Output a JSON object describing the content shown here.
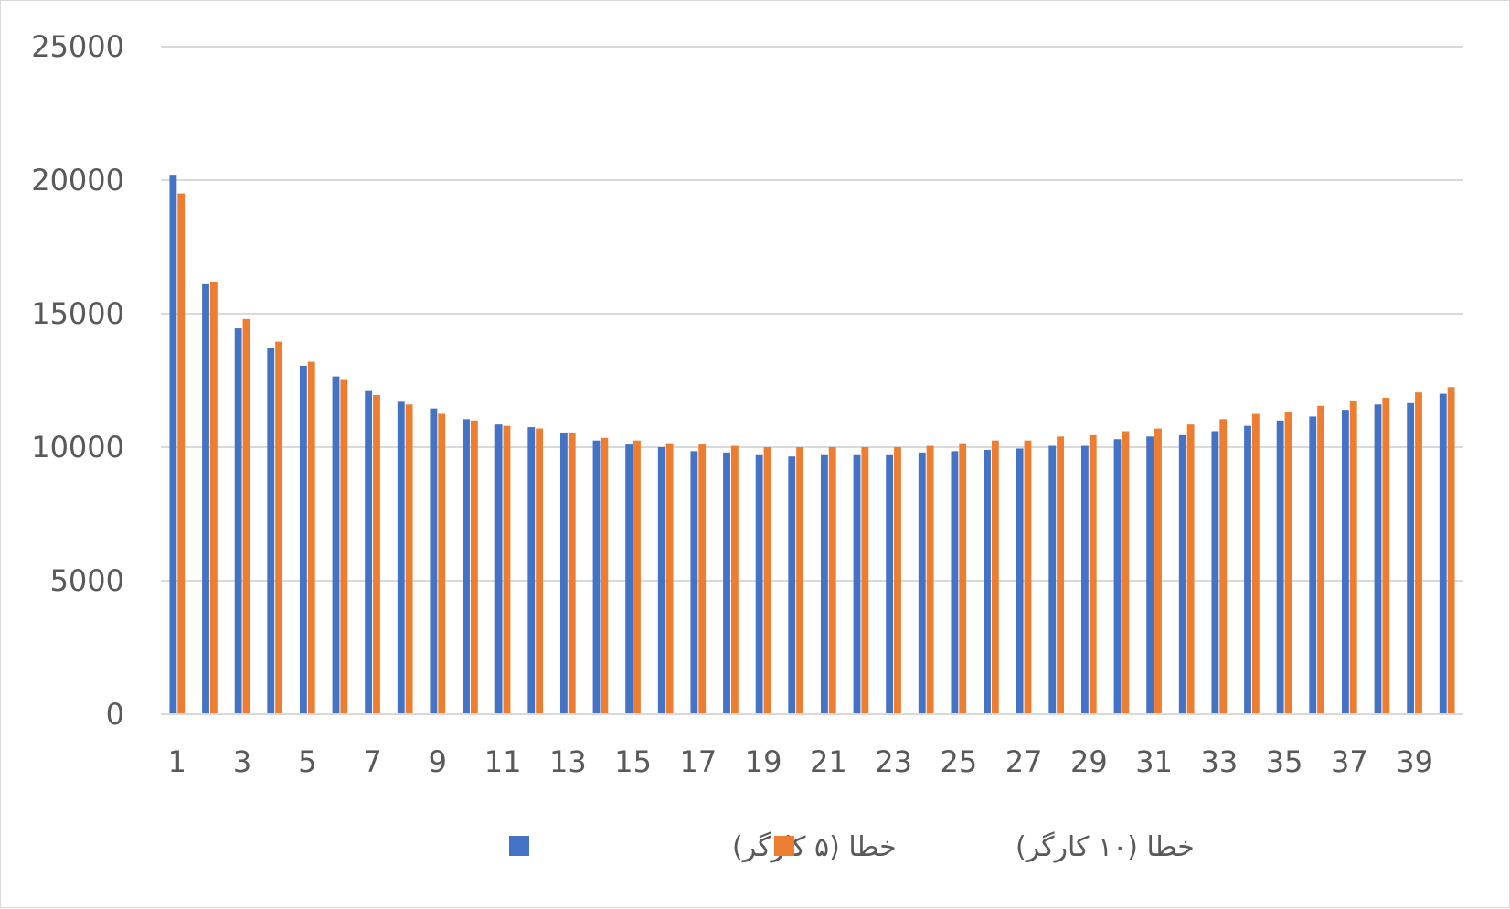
{
  "chart_data": {
    "type": "bar",
    "title": "",
    "xlabel": "",
    "ylabel": "",
    "ylim": [
      0,
      25000
    ],
    "yticks": [
      "0",
      "5000",
      "10000",
      "15000",
      "20000",
      "25000"
    ],
    "xtick_labels": [
      "1",
      "3",
      "5",
      "7",
      "9",
      "11",
      "13",
      "15",
      "17",
      "19",
      "21",
      "23",
      "25",
      "27",
      "29",
      "31",
      "33",
      "35",
      "37",
      "39"
    ],
    "grid": true,
    "legend_position": "bottom",
    "categories": [
      1,
      2,
      3,
      4,
      5,
      6,
      7,
      8,
      9,
      10,
      11,
      12,
      13,
      14,
      15,
      16,
      17,
      18,
      19,
      20,
      21,
      22,
      23,
      24,
      25,
      26,
      27,
      28,
      29,
      30,
      31,
      32,
      33,
      34,
      35,
      36,
      37,
      38,
      39,
      40
    ],
    "series": [
      {
        "name": "خطا (۵ کارگر)",
        "color": "#4472C4",
        "values": [
          20200,
          16100,
          14450,
          13700,
          13050,
          12650,
          12100,
          11700,
          11450,
          11050,
          10850,
          10750,
          10550,
          10250,
          10100,
          10000,
          9850,
          9800,
          9700,
          9650,
          9700,
          9700,
          9700,
          9800,
          9850,
          9900,
          9950,
          10050,
          10050,
          10300,
          10400,
          10450,
          10600,
          10800,
          11000,
          11150,
          11400,
          11600,
          11650,
          12000
        ]
      },
      {
        "name": "خطا (۱۰ کارگر)",
        "color": "#ED7D31",
        "values": [
          19500,
          16200,
          14800,
          13950,
          13200,
          12550,
          11950,
          11600,
          11250,
          11000,
          10800,
          10700,
          10550,
          10350,
          10250,
          10150,
          10100,
          10050,
          10000,
          10000,
          10000,
          10000,
          10000,
          10050,
          10150,
          10250,
          10250,
          10400,
          10450,
          10600,
          10700,
          10850,
          11050,
          11250,
          11300,
          11550,
          11750,
          11850,
          12050,
          12250
        ]
      }
    ]
  }
}
